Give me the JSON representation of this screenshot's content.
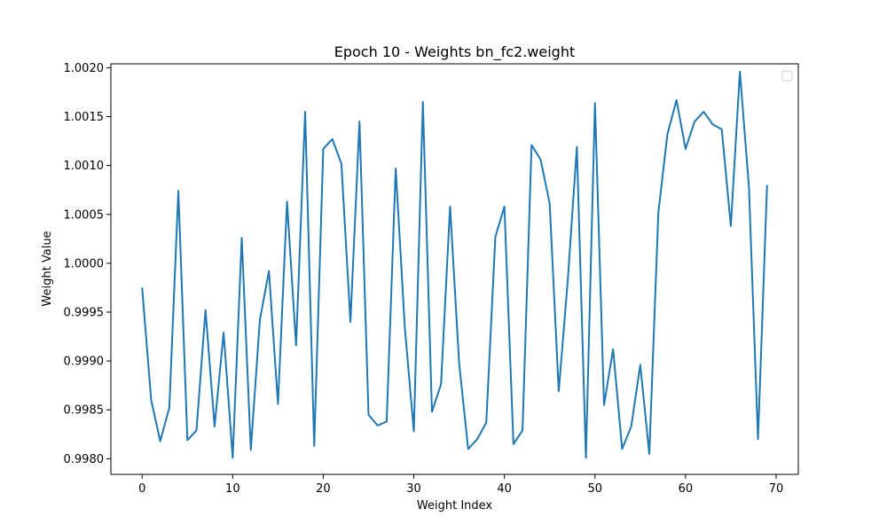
{
  "chart_data": {
    "type": "line",
    "title": "Epoch 10 - Weights bn_fc2.weight",
    "xlabel": "Weight Index",
    "ylabel": "Weight Value",
    "xlim": [
      -3.45,
      72.45
    ],
    "ylim": [
      0.99784,
      1.00204
    ],
    "xticks": [
      0,
      10,
      20,
      30,
      40,
      50,
      60,
      70
    ],
    "xtick_labels": [
      "0",
      "10",
      "20",
      "30",
      "40",
      "50",
      "60",
      "70"
    ],
    "yticks": [
      0.998,
      0.9985,
      0.999,
      0.9995,
      1.0,
      1.0005,
      1.001,
      1.0015,
      1.002
    ],
    "ytick_labels": [
      "0.9980",
      "0.9985",
      "0.9990",
      "0.9995",
      "1.0000",
      "1.0005",
      "1.0010",
      "1.0015",
      "1.0020"
    ],
    "grid": false,
    "legend": "top-right (empty)",
    "series": [
      {
        "color": "#1f77b4",
        "x": [
          0,
          1,
          2,
          3,
          4,
          5,
          6,
          7,
          8,
          9,
          10,
          11,
          12,
          13,
          14,
          15,
          16,
          17,
          18,
          19,
          20,
          21,
          22,
          23,
          24,
          25,
          26,
          27,
          28,
          29,
          30,
          31,
          32,
          33,
          34,
          35,
          36,
          37,
          38,
          39,
          40,
          41,
          42,
          43,
          44,
          45,
          46,
          47,
          48,
          49,
          50,
          51,
          52,
          53,
          54,
          55,
          56,
          57,
          58,
          59,
          60,
          61,
          62,
          63,
          64,
          65,
          66,
          67,
          68,
          69
        ],
        "values": [
          0.99975,
          0.9986,
          0.99818,
          0.99852,
          1.00074,
          0.99819,
          0.99829,
          0.99952,
          0.99833,
          0.99929,
          0.99801,
          1.00026,
          0.99809,
          0.99942,
          0.99992,
          0.99856,
          1.00063,
          0.99916,
          1.00155,
          0.99813,
          1.00117,
          1.00127,
          1.00102,
          0.9994,
          1.00145,
          0.99845,
          0.99834,
          0.99838,
          1.00097,
          0.99935,
          0.99828,
          1.00165,
          0.99848,
          0.99876,
          1.00058,
          0.99898,
          0.9981,
          0.9982,
          0.99837,
          1.00027,
          1.00058,
          0.99815,
          0.99829,
          1.00121,
          1.00106,
          1.00061,
          0.99869,
          0.99983,
          1.00119,
          0.99801,
          1.00164,
          0.99855,
          0.99912,
          0.9981,
          0.99833,
          0.99896,
          0.99805,
          1.00052,
          1.00132,
          1.00167,
          1.00117,
          1.00145,
          1.00155,
          1.00142,
          1.00137,
          1.00038,
          1.00196,
          1.00078,
          0.9982,
          1.0008
        ]
      }
    ]
  }
}
